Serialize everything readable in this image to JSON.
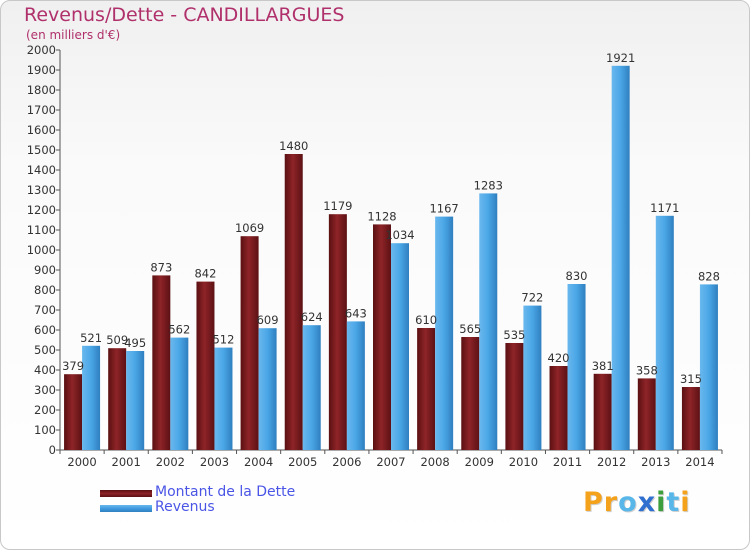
{
  "title": "Revenus/Dette - CANDILLARGUES",
  "subtitle": "(en milliers d'€)",
  "legend": {
    "debt_label": "Montant de la Dette",
    "revenue_label": "Revenus"
  },
  "logo": {
    "text": "Proxiti",
    "colors": [
      "#f4a11c",
      "#f4a11c",
      "#58b7e8",
      "#2e6fcf",
      "#3c9e3c",
      "#58b7e8",
      "#f4a11c"
    ]
  },
  "colors": {
    "debt": "#7a1b1e",
    "revenue": "#3f9be0",
    "title": "#b0306b",
    "legend_text": "#4a55e6"
  },
  "chart_data": {
    "type": "bar",
    "categories": [
      "2000",
      "2001",
      "2002",
      "2003",
      "2004",
      "2005",
      "2006",
      "2007",
      "2008",
      "2009",
      "2010",
      "2011",
      "2012",
      "2013",
      "2014"
    ],
    "series": [
      {
        "name": "Montant de la Dette",
        "values": [
          379,
          509,
          873,
          842,
          1069,
          1480,
          1179,
          1128,
          610,
          565,
          535,
          420,
          381,
          358,
          315
        ]
      },
      {
        "name": "Revenus",
        "values": [
          521,
          495,
          562,
          512,
          609,
          624,
          643,
          1034,
          1167,
          1283,
          722,
          830,
          1921,
          1171,
          828
        ]
      }
    ],
    "ylim": [
      0,
      2000
    ],
    "yticks": [
      0,
      100,
      200,
      300,
      400,
      500,
      600,
      700,
      800,
      900,
      1000,
      1100,
      1200,
      1300,
      1400,
      1500,
      1600,
      1700,
      1800,
      1900,
      2000
    ],
    "grid": false,
    "legend_position": "bottom-left"
  }
}
